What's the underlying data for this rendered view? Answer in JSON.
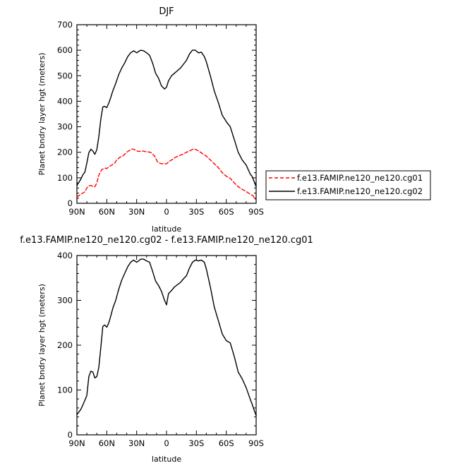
{
  "chart_data": [
    {
      "type": "line",
      "title": "DJF",
      "xlabel": "latitude",
      "ylabel": "Planet bndry layer hgt (meters)",
      "xlim": [
        -90,
        90
      ],
      "ylim": [
        0,
        700
      ],
      "x_ticks": [
        -90,
        -60,
        -30,
        0,
        30,
        60,
        90
      ],
      "x_tick_labels": [
        "90N",
        "60N",
        "30N",
        "0",
        "30S",
        "60S",
        "90S"
      ],
      "y_ticks": [
        0,
        100,
        200,
        300,
        400,
        500,
        600,
        700
      ],
      "y_tick_labels": [
        "0",
        "100",
        "200",
        "300",
        "400",
        "500",
        "600",
        "700"
      ],
      "legend_position": "right",
      "series": [
        {
          "name": "f.e13.FAMIP.ne120_ne120.cg01",
          "color": "#ff0000",
          "dash": "dashed",
          "x": [
            -90,
            -85,
            -82,
            -80,
            -78,
            -76,
            -74,
            -72,
            -70,
            -68,
            -65,
            -62,
            -60,
            -58,
            -55,
            -52,
            -50,
            -47,
            -44,
            -42,
            -40,
            -37,
            -34,
            -32,
            -30,
            -27,
            -24,
            -20,
            -16,
            -12,
            -9,
            -6,
            -3,
            0,
            3,
            6,
            9,
            12,
            15,
            18,
            20,
            24,
            27,
            30,
            33,
            36,
            40,
            44,
            48,
            52,
            56,
            60,
            64,
            68,
            72,
            76,
            80,
            84,
            87,
            88,
            90
          ],
          "y": [
            25,
            38,
            45,
            60,
            68,
            70,
            66,
            65,
            80,
            110,
            132,
            138,
            136,
            143,
            150,
            158,
            170,
            180,
            185,
            192,
            200,
            208,
            213,
            210,
            205,
            203,
            205,
            202,
            200,
            185,
            162,
            156,
            155,
            155,
            165,
            172,
            180,
            186,
            190,
            195,
            200,
            207,
            213,
            210,
            203,
            195,
            185,
            170,
            155,
            140,
            120,
            106,
            98,
            80,
            65,
            55,
            46,
            36,
            30,
            20,
            15
          ]
        },
        {
          "name": "f.e13.FAMIP.ne120_ne120.cg02",
          "color": "#000000",
          "dash": "solid",
          "x": [
            -90,
            -86,
            -84,
            -82,
            -80,
            -78,
            -76,
            -74,
            -72,
            -70,
            -68,
            -66,
            -64,
            -62,
            -60,
            -58,
            -56,
            -54,
            -51,
            -48,
            -45,
            -42,
            -39,
            -36,
            -33,
            -30,
            -28,
            -26,
            -23,
            -20,
            -17,
            -14,
            -11,
            -8,
            -5,
            -2,
            0,
            2,
            5,
            8,
            11,
            14,
            17,
            20,
            23,
            26,
            29,
            32,
            35,
            38,
            40,
            44,
            48,
            52,
            56,
            60,
            64,
            68,
            72,
            76,
            80,
            84,
            86,
            88,
            90
          ],
          "y": [
            70,
            95,
            112,
            122,
            158,
            198,
            212,
            205,
            192,
            210,
            260,
            330,
            378,
            380,
            375,
            393,
            415,
            440,
            470,
            505,
            530,
            550,
            575,
            590,
            598,
            590,
            595,
            600,
            598,
            590,
            580,
            550,
            510,
            490,
            460,
            448,
            455,
            480,
            500,
            510,
            520,
            530,
            545,
            560,
            585,
            600,
            600,
            590,
            592,
            575,
            555,
            500,
            440,
            395,
            345,
            320,
            300,
            250,
            200,
            170,
            150,
            115,
            105,
            85,
            65
          ]
        }
      ]
    },
    {
      "type": "line",
      "title": "f.e13.FAMIP.ne120_ne120.cg02 - f.e13.FAMIP.ne120_ne120.cg01",
      "xlabel": "latitude",
      "ylabel": "Planet bndry layer hgt (meters)",
      "xlim": [
        -90,
        90
      ],
      "ylim": [
        0,
        400
      ],
      "x_ticks": [
        -90,
        -60,
        -30,
        0,
        30,
        60,
        90
      ],
      "x_tick_labels": [
        "90N",
        "60N",
        "30N",
        "0",
        "30S",
        "60S",
        "90S"
      ],
      "y_ticks": [
        0,
        100,
        200,
        300,
        400
      ],
      "y_tick_labels": [
        "0",
        "100",
        "200",
        "300",
        "400"
      ],
      "series": [
        {
          "color": "#000000",
          "dash": "solid",
          "x": [
            -90,
            -86,
            -84,
            -82,
            -80,
            -78,
            -76,
            -74,
            -72,
            -70,
            -68,
            -66,
            -64,
            -62,
            -60,
            -58,
            -56,
            -54,
            -51,
            -48,
            -45,
            -42,
            -39,
            -36,
            -33,
            -30,
            -28,
            -26,
            -23,
            -20,
            -17,
            -14,
            -11,
            -8,
            -5,
            -2,
            0,
            2,
            5,
            8,
            11,
            14,
            17,
            20,
            23,
            26,
            29,
            32,
            35,
            38,
            40,
            44,
            48,
            52,
            56,
            60,
            64,
            68,
            72,
            76,
            80,
            84,
            86,
            88,
            90
          ],
          "y": [
            45,
            57,
            67,
            77,
            88,
            130,
            142,
            140,
            127,
            130,
            150,
            195,
            242,
            245,
            240,
            250,
            265,
            282,
            300,
            325,
            345,
            360,
            375,
            385,
            390,
            385,
            388,
            392,
            392,
            388,
            385,
            365,
            343,
            333,
            320,
            300,
            290,
            315,
            322,
            330,
            335,
            340,
            348,
            355,
            372,
            385,
            390,
            388,
            390,
            385,
            370,
            330,
            285,
            255,
            225,
            210,
            205,
            175,
            140,
            125,
            105,
            80,
            68,
            55,
            43
          ]
        }
      ]
    }
  ]
}
